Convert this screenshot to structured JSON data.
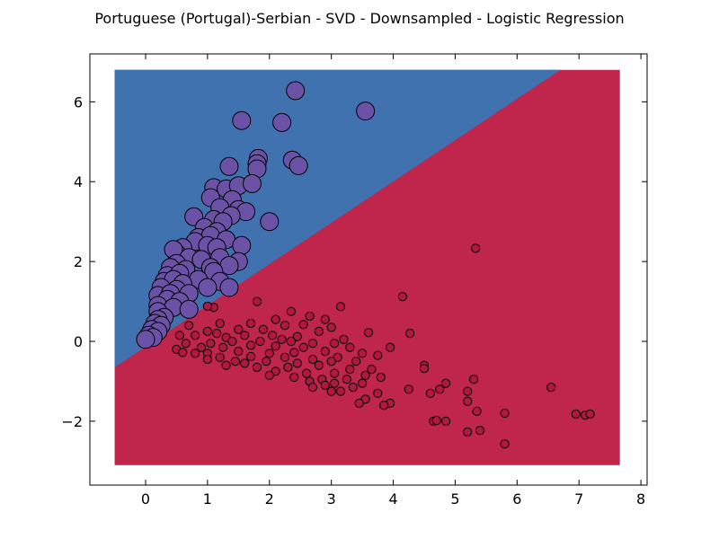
{
  "chart_data": {
    "type": "scatter",
    "title": "Portuguese (Portugal)-Serbian - SVD - Downsampled - Logistic Regression",
    "xlabel": "",
    "ylabel": "",
    "xlim": [
      -0.9,
      8.1
    ],
    "ylim": [
      -3.6,
      7.2
    ],
    "xticks": [
      0,
      1,
      2,
      3,
      4,
      5,
      6,
      7,
      8
    ],
    "yticks": [
      -2,
      0,
      2,
      4,
      6
    ],
    "ytick_labels": [
      "−2",
      "0",
      "2",
      "4",
      "6"
    ],
    "grid": false,
    "decision_region": {
      "x_range": [
        -0.5,
        7.66
      ],
      "y_range": [
        -3.1,
        6.8
      ],
      "boundary": [
        [
          -0.5,
          -0.65
        ],
        [
          6.7,
          6.8
        ]
      ],
      "upper_color": "#4172b0",
      "lower_color": "#c0254b"
    },
    "series": [
      {
        "color": "#6b52a6",
        "marker_size": "large",
        "points": [
          [
            2.42,
            6.28
          ],
          [
            1.55,
            5.53
          ],
          [
            2.2,
            5.48
          ],
          [
            3.55,
            5.77
          ],
          [
            1.82,
            4.58
          ],
          [
            1.8,
            4.45
          ],
          [
            2.37,
            4.54
          ],
          [
            2.47,
            4.4
          ],
          [
            1.35,
            4.38
          ],
          [
            1.8,
            4.32
          ],
          [
            1.1,
            3.85
          ],
          [
            1.3,
            3.82
          ],
          [
            1.5,
            3.9
          ],
          [
            1.72,
            3.95
          ],
          [
            1.05,
            3.6
          ],
          [
            1.4,
            3.55
          ],
          [
            1.2,
            3.35
          ],
          [
            1.5,
            3.3
          ],
          [
            1.62,
            3.25
          ],
          [
            0.78,
            3.12
          ],
          [
            1.38,
            3.15
          ],
          [
            2.0,
            3.0
          ],
          [
            1.1,
            3.05
          ],
          [
            1.25,
            3.0
          ],
          [
            0.95,
            2.85
          ],
          [
            1.15,
            2.75
          ],
          [
            0.85,
            2.6
          ],
          [
            1.05,
            2.65
          ],
          [
            0.8,
            2.5
          ],
          [
            1.0,
            2.4
          ],
          [
            1.3,
            2.55
          ],
          [
            1.55,
            2.4
          ],
          [
            0.6,
            2.35
          ],
          [
            0.5,
            2.2
          ],
          [
            0.45,
            2.3
          ],
          [
            1.15,
            2.35
          ],
          [
            0.7,
            2.1
          ],
          [
            1.2,
            2.1
          ],
          [
            0.9,
            2.05
          ],
          [
            0.5,
            1.95
          ],
          [
            1.5,
            2.0
          ],
          [
            0.4,
            1.85
          ],
          [
            0.65,
            1.8
          ],
          [
            1.05,
            1.85
          ],
          [
            1.35,
            1.9
          ],
          [
            0.35,
            1.65
          ],
          [
            0.55,
            1.7
          ],
          [
            1.1,
            1.75
          ],
          [
            0.3,
            1.5
          ],
          [
            0.45,
            1.55
          ],
          [
            0.85,
            1.55
          ],
          [
            0.6,
            1.45
          ],
          [
            1.2,
            1.5
          ],
          [
            0.25,
            1.35
          ],
          [
            0.5,
            1.3
          ],
          [
            1.0,
            1.35
          ],
          [
            1.35,
            1.35
          ],
          [
            0.2,
            1.15
          ],
          [
            0.4,
            1.2
          ],
          [
            0.7,
            1.2
          ],
          [
            0.35,
            1.05
          ],
          [
            0.55,
            1.0
          ],
          [
            0.2,
            0.9
          ],
          [
            0.45,
            0.85
          ],
          [
            0.7,
            0.8
          ],
          [
            0.2,
            0.75
          ],
          [
            0.3,
            0.6
          ],
          [
            0.2,
            0.55
          ],
          [
            0.15,
            0.45
          ],
          [
            0.25,
            0.4
          ],
          [
            0.1,
            0.3
          ],
          [
            0.2,
            0.25
          ],
          [
            0.05,
            0.15
          ],
          [
            0.12,
            0.1
          ],
          [
            0.0,
            0.05
          ]
        ]
      },
      {
        "color": "#b01840",
        "marker_size": "small",
        "points": [
          [
            5.33,
            2.33
          ],
          [
            4.15,
            1.12
          ],
          [
            1.8,
            1.0
          ],
          [
            3.15,
            0.87
          ],
          [
            1.1,
            0.85
          ],
          [
            1.0,
            0.88
          ],
          [
            2.35,
            0.75
          ],
          [
            2.65,
            0.63
          ],
          [
            2.1,
            0.55
          ],
          [
            2.9,
            0.55
          ],
          [
            0.7,
            0.4
          ],
          [
            1.2,
            0.45
          ],
          [
            1.7,
            0.45
          ],
          [
            2.25,
            0.4
          ],
          [
            2.55,
            0.42
          ],
          [
            3.0,
            0.35
          ],
          [
            1.0,
            0.25
          ],
          [
            1.5,
            0.3
          ],
          [
            1.9,
            0.3
          ],
          [
            2.8,
            0.25
          ],
          [
            3.6,
            0.22
          ],
          [
            4.27,
            0.2
          ],
          [
            0.55,
            0.15
          ],
          [
            0.8,
            0.15
          ],
          [
            1.15,
            0.2
          ],
          [
            1.6,
            0.15
          ],
          [
            2.05,
            0.15
          ],
          [
            2.45,
            0.12
          ],
          [
            1.3,
            0.1
          ],
          [
            2.2,
            0.05
          ],
          [
            3.2,
            0.05
          ],
          [
            0.65,
            -0.05
          ],
          [
            1.05,
            -0.05
          ],
          [
            1.4,
            0.0
          ],
          [
            1.85,
            0.0
          ],
          [
            2.35,
            0.0
          ],
          [
            2.7,
            -0.05
          ],
          [
            3.05,
            -0.05
          ],
          [
            0.5,
            -0.2
          ],
          [
            0.9,
            -0.15
          ],
          [
            1.25,
            -0.15
          ],
          [
            1.7,
            -0.1
          ],
          [
            2.1,
            -0.12
          ],
          [
            2.55,
            -0.15
          ],
          [
            3.3,
            -0.15
          ],
          [
            3.95,
            -0.15
          ],
          [
            0.6,
            -0.28
          ],
          [
            1.0,
            -0.3
          ],
          [
            1.5,
            -0.25
          ],
          [
            2.0,
            -0.3
          ],
          [
            2.4,
            -0.28
          ],
          [
            2.9,
            -0.25
          ],
          [
            3.5,
            -0.3
          ],
          [
            0.8,
            -0.3
          ],
          [
            1.2,
            -0.4
          ],
          [
            1.7,
            -0.38
          ],
          [
            2.25,
            -0.4
          ],
          [
            2.7,
            -0.45
          ],
          [
            3.1,
            -0.4
          ],
          [
            3.75,
            -0.35
          ],
          [
            1.0,
            -0.45
          ],
          [
            1.45,
            -0.5
          ],
          [
            1.95,
            -0.5
          ],
          [
            2.45,
            -0.55
          ],
          [
            3.0,
            -0.5
          ],
          [
            3.4,
            -0.5
          ],
          [
            1.3,
            -0.6
          ],
          [
            1.8,
            -0.65
          ],
          [
            2.3,
            -0.65
          ],
          [
            2.8,
            -0.6
          ],
          [
            3.3,
            -0.7
          ],
          [
            3.65,
            -0.7
          ],
          [
            4.5,
            -0.6
          ],
          [
            4.5,
            -0.68
          ],
          [
            1.6,
            -0.55
          ],
          [
            2.1,
            -0.75
          ],
          [
            2.6,
            -0.8
          ],
          [
            3.05,
            -0.8
          ],
          [
            3.55,
            -0.85
          ],
          [
            2.0,
            -0.85
          ],
          [
            2.4,
            -0.9
          ],
          [
            2.85,
            -0.95
          ],
          [
            3.25,
            -0.95
          ],
          [
            3.8,
            -0.9
          ],
          [
            2.65,
            -1.0
          ],
          [
            3.05,
            -1.05
          ],
          [
            3.5,
            -1.05
          ],
          [
            2.9,
            -1.1
          ],
          [
            3.35,
            -1.15
          ],
          [
            4.25,
            -1.2
          ],
          [
            4.6,
            -1.3
          ],
          [
            2.7,
            -1.15
          ],
          [
            3.15,
            -1.25
          ],
          [
            3.75,
            -1.3
          ],
          [
            3.0,
            -1.25
          ],
          [
            3.55,
            -1.45
          ],
          [
            3.95,
            -1.55
          ],
          [
            3.45,
            -1.55
          ],
          [
            3.85,
            -1.6
          ],
          [
            4.75,
            -1.2
          ],
          [
            4.85,
            -1.05
          ],
          [
            5.3,
            -0.95
          ],
          [
            5.2,
            -1.25
          ],
          [
            5.2,
            -1.5
          ],
          [
            5.35,
            -1.75
          ],
          [
            4.65,
            -2.0
          ],
          [
            4.7,
            -1.98
          ],
          [
            4.85,
            -2.0
          ],
          [
            5.8,
            -1.8
          ],
          [
            5.2,
            -2.27
          ],
          [
            5.4,
            -2.23
          ],
          [
            5.8,
            -2.57
          ],
          [
            6.55,
            -1.15
          ],
          [
            6.95,
            -1.82
          ],
          [
            7.1,
            -1.85
          ],
          [
            7.18,
            -1.82
          ]
        ]
      }
    ]
  }
}
